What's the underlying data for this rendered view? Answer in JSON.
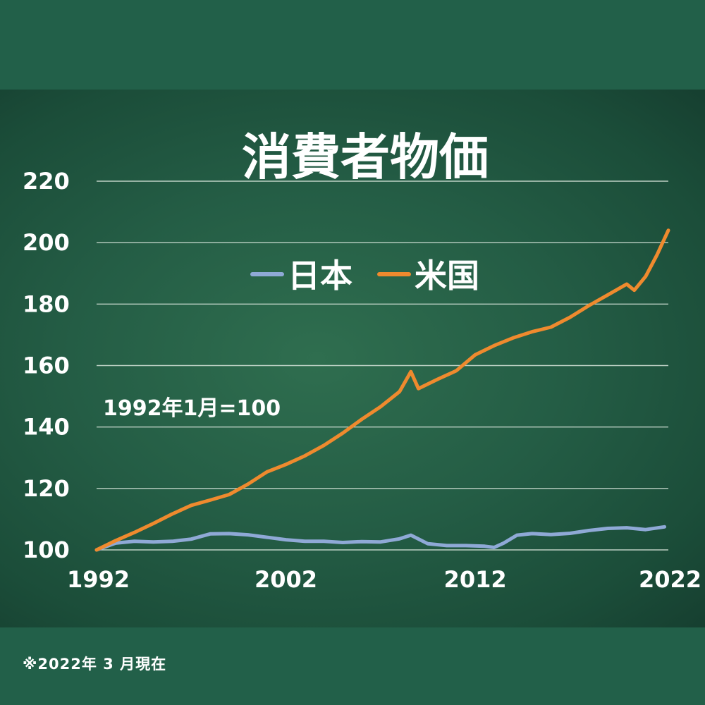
{
  "footnote": "※2022年 3 月現在",
  "chart_data": {
    "type": "line",
    "title": "消費者物価",
    "annotation": "1992年1月=100",
    "x_ticks": [
      "1992",
      "2002",
      "2012",
      "2022"
    ],
    "y_ticks": [
      "100",
      "120",
      "140",
      "160",
      "180",
      "200",
      "220"
    ],
    "xlim": [
      1992,
      2022.2
    ],
    "ylim": [
      100,
      220
    ],
    "grid": true,
    "legend_placement": "top-center",
    "series": [
      {
        "name": "日本",
        "color": "#8fa9d6",
        "points": [
          [
            1992.0,
            100
          ],
          [
            1993.0,
            102.2
          ],
          [
            1994.0,
            102.8
          ],
          [
            1995.0,
            102.6
          ],
          [
            1996.0,
            102.8
          ],
          [
            1997.0,
            103.5
          ],
          [
            1998.0,
            105.2
          ],
          [
            1999.0,
            105.3
          ],
          [
            2000.0,
            104.9
          ],
          [
            2001.0,
            104.1
          ],
          [
            2002.0,
            103.3
          ],
          [
            2003.0,
            102.8
          ],
          [
            2004.0,
            102.8
          ],
          [
            2005.0,
            102.4
          ],
          [
            2006.0,
            102.7
          ],
          [
            2007.0,
            102.6
          ],
          [
            2008.0,
            103.6
          ],
          [
            2008.6,
            104.8
          ],
          [
            2009.5,
            102.0
          ],
          [
            2010.5,
            101.4
          ],
          [
            2011.5,
            101.4
          ],
          [
            2012.5,
            101.2
          ],
          [
            2013.0,
            100.8
          ],
          [
            2013.5,
            102.2
          ],
          [
            2014.2,
            104.8
          ],
          [
            2015.0,
            105.3
          ],
          [
            2016.0,
            105.0
          ],
          [
            2017.0,
            105.4
          ],
          [
            2018.0,
            106.3
          ],
          [
            2019.0,
            107.0
          ],
          [
            2020.0,
            107.2
          ],
          [
            2021.0,
            106.6
          ],
          [
            2022.0,
            107.5
          ]
        ]
      },
      {
        "name": "米国",
        "color": "#ef8a2e",
        "points": [
          [
            1992.0,
            100
          ],
          [
            1993.0,
            103.0
          ],
          [
            1994.0,
            105.7
          ],
          [
            1995.0,
            108.6
          ],
          [
            1996.0,
            111.7
          ],
          [
            1997.0,
            114.5
          ],
          [
            1998.0,
            116.2
          ],
          [
            1999.0,
            118.0
          ],
          [
            2000.0,
            121.4
          ],
          [
            2001.0,
            125.4
          ],
          [
            2002.0,
            127.8
          ],
          [
            2003.0,
            130.6
          ],
          [
            2004.0,
            134.0
          ],
          [
            2005.0,
            138.0
          ],
          [
            2006.0,
            142.5
          ],
          [
            2007.0,
            146.6
          ],
          [
            2008.0,
            151.5
          ],
          [
            2008.6,
            158.0
          ],
          [
            2009.0,
            152.5
          ],
          [
            2010.0,
            155.5
          ],
          [
            2011.0,
            158.3
          ],
          [
            2012.0,
            163.5
          ],
          [
            2013.0,
            166.5
          ],
          [
            2014.0,
            169.0
          ],
          [
            2015.0,
            171.0
          ],
          [
            2016.0,
            172.5
          ],
          [
            2017.0,
            175.7
          ],
          [
            2018.0,
            179.5
          ],
          [
            2019.0,
            183.0
          ],
          [
            2020.0,
            186.5
          ],
          [
            2020.4,
            184.5
          ],
          [
            2021.0,
            189.0
          ],
          [
            2021.6,
            196.0
          ],
          [
            2022.2,
            204.0
          ]
        ]
      }
    ]
  }
}
